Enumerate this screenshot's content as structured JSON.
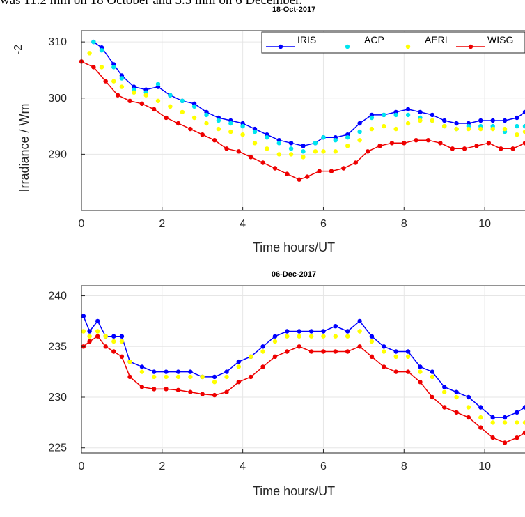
{
  "caption": "was 11.2 mm on 18 October and 5.5 mm on 6 December.",
  "chart_data": [
    {
      "type": "line",
      "title": "18-Oct-2017",
      "xlabel": "Time hours/UT",
      "ylabel": "Irradiance / Wm",
      "ylabel_superscript": "-2",
      "xlim": [
        0,
        11
      ],
      "ylim": [
        280,
        312
      ],
      "xticks": [
        0,
        2,
        4,
        6,
        8,
        10
      ],
      "yticks": [
        290,
        300,
        310
      ],
      "grid": true,
      "legend": "top-right",
      "series": [
        {
          "name": "IRIS",
          "color": "#0000ff",
          "marker": "dot-line",
          "x": [
            0.3,
            0.5,
            0.8,
            1.0,
            1.3,
            1.6,
            1.9,
            2.2,
            2.5,
            2.8,
            3.1,
            3.4,
            3.7,
            4.0,
            4.3,
            4.6,
            4.9,
            5.2,
            5.5,
            5.8,
            6.0,
            6.3,
            6.6,
            6.9,
            7.2,
            7.5,
            7.8,
            8.1,
            8.4,
            8.7,
            9.0,
            9.3,
            9.6,
            9.9,
            10.2,
            10.5,
            10.8,
            11.0
          ],
          "y": [
            310,
            309,
            306,
            304,
            302,
            301.5,
            302,
            300.5,
            299.5,
            299,
            297.5,
            296.5,
            296,
            295.5,
            294.5,
            293.5,
            292.5,
            292,
            291.5,
            292,
            293,
            293,
            293.5,
            295.5,
            297,
            297,
            297.5,
            298,
            297.5,
            297,
            296,
            295.5,
            295.5,
            296,
            296,
            296,
            296.5,
            297.5
          ]
        },
        {
          "name": "ACP",
          "color": "#00e5ee",
          "marker": "dot",
          "x": [
            0.3,
            0.5,
            0.8,
            1.0,
            1.3,
            1.6,
            1.9,
            2.2,
            2.5,
            2.8,
            3.1,
            3.4,
            3.7,
            4.0,
            4.3,
            4.6,
            4.9,
            5.2,
            5.5,
            5.8,
            6.0,
            6.3,
            6.6,
            6.9,
            7.2,
            7.5,
            7.8,
            8.1,
            8.4,
            8.7,
            9.0,
            9.3,
            9.6,
            9.9,
            10.2,
            10.5,
            10.8,
            11.0
          ],
          "y": [
            310,
            308.5,
            305.5,
            303.5,
            301.5,
            301,
            302.5,
            300.5,
            299.5,
            298.5,
            297,
            296,
            295.5,
            295,
            294,
            293,
            292,
            291,
            290.5,
            292,
            293,
            292.5,
            293,
            294,
            296.5,
            297,
            297,
            297,
            296.5,
            296,
            295,
            294.5,
            295,
            295,
            295,
            294,
            295,
            295
          ]
        },
        {
          "name": "AERI",
          "color": "#ffff00",
          "marker": "dot",
          "x": [
            0.2,
            0.5,
            0.8,
            1.0,
            1.3,
            1.6,
            1.9,
            2.2,
            2.5,
            2.8,
            3.1,
            3.4,
            3.7,
            4.0,
            4.3,
            4.6,
            4.9,
            5.2,
            5.5,
            5.8,
            6.0,
            6.3,
            6.6,
            6.9,
            7.2,
            7.5,
            7.8,
            8.1,
            8.4,
            8.7,
            9.0,
            9.3,
            9.6,
            9.9,
            10.2,
            10.5,
            10.8,
            11.0
          ],
          "y": [
            308,
            305.5,
            303,
            302,
            301,
            300.5,
            299.5,
            298.5,
            297.5,
            296.5,
            295.5,
            294.5,
            294,
            293.5,
            292,
            291,
            290,
            290,
            289.5,
            290.5,
            290.5,
            290.5,
            291.5,
            292.5,
            294.5,
            295,
            294.5,
            295.5,
            296,
            296,
            295,
            294.5,
            294.5,
            294.5,
            294.5,
            294.5,
            293.5,
            294
          ]
        },
        {
          "name": "WISG",
          "color": "#ee0000",
          "marker": "dot-line",
          "x": [
            0.0,
            0.3,
            0.6,
            0.9,
            1.2,
            1.5,
            1.8,
            2.1,
            2.4,
            2.7,
            3.0,
            3.3,
            3.6,
            3.9,
            4.2,
            4.5,
            4.8,
            5.1,
            5.4,
            5.6,
            5.9,
            6.2,
            6.5,
            6.8,
            7.1,
            7.4,
            7.7,
            8.0,
            8.3,
            8.6,
            8.9,
            9.2,
            9.5,
            9.8,
            10.1,
            10.4,
            10.7,
            11.0
          ],
          "y": [
            306.5,
            305.5,
            303,
            300.5,
            299.5,
            299,
            298,
            296.5,
            295.5,
            294.5,
            293.5,
            292.5,
            291,
            290.5,
            289.5,
            288.5,
            287.5,
            286.5,
            285.5,
            286,
            287,
            287,
            287.5,
            288.5,
            290.5,
            291.5,
            292,
            292,
            292.5,
            292.5,
            292,
            291,
            291,
            291.5,
            292,
            291,
            291,
            292
          ]
        }
      ]
    },
    {
      "type": "line",
      "title": "06-Dec-2017",
      "xlabel": "Time hours/UT",
      "ylabel": "",
      "xlim": [
        0,
        11
      ],
      "ylim": [
        224.5,
        241
      ],
      "xticks": [
        0,
        2,
        4,
        6,
        8,
        10
      ],
      "yticks": [
        225,
        230,
        235,
        240
      ],
      "grid": true,
      "series": [
        {
          "name": "IRIS",
          "color": "#0000ff",
          "marker": "dot-line",
          "x": [
            0.05,
            0.2,
            0.4,
            0.6,
            0.8,
            1.0,
            1.2,
            1.5,
            1.8,
            2.1,
            2.4,
            2.7,
            3.0,
            3.3,
            3.6,
            3.9,
            4.2,
            4.5,
            4.8,
            5.1,
            5.4,
            5.7,
            6.0,
            6.3,
            6.6,
            6.9,
            7.2,
            7.5,
            7.8,
            8.1,
            8.4,
            8.7,
            9.0,
            9.3,
            9.6,
            9.9,
            10.2,
            10.5,
            10.8,
            11.0
          ],
          "y": [
            238,
            236.5,
            237.5,
            236,
            236,
            236,
            233.5,
            233,
            232.5,
            232.5,
            232.5,
            232.5,
            232,
            232,
            232.5,
            233.5,
            234,
            235,
            236,
            236.5,
            236.5,
            236.5,
            236.5,
            237,
            236.5,
            237.5,
            236,
            235,
            234.5,
            234.5,
            233,
            232.5,
            231,
            230.5,
            230,
            229,
            228,
            228,
            228.5,
            229
          ]
        },
        {
          "name": "AERI",
          "color": "#ffff00",
          "marker": "dot",
          "x": [
            0.05,
            0.2,
            0.4,
            0.6,
            0.8,
            1.0,
            1.2,
            1.5,
            1.8,
            2.1,
            2.4,
            2.7,
            3.0,
            3.3,
            3.6,
            3.9,
            4.2,
            4.5,
            4.8,
            5.1,
            5.4,
            5.7,
            6.0,
            6.3,
            6.6,
            6.9,
            7.2,
            7.5,
            7.8,
            8.1,
            8.4,
            8.7,
            9.0,
            9.3,
            9.6,
            9.9,
            10.2,
            10.5,
            10.8,
            11.0
          ],
          "y": [
            236.5,
            236,
            236.5,
            236,
            235.5,
            235.5,
            233.5,
            232.5,
            232,
            232,
            232,
            232,
            232,
            231.5,
            232,
            233,
            234,
            234.5,
            235.5,
            236,
            236,
            236,
            236,
            236,
            236,
            236.5,
            235.5,
            234.5,
            234,
            234,
            232.5,
            232,
            230.5,
            230,
            229,
            228,
            227.5,
            227.5,
            227.5,
            227.5
          ]
        },
        {
          "name": "WISG",
          "color": "#ee0000",
          "marker": "dot-line",
          "x": [
            0.05,
            0.2,
            0.4,
            0.6,
            0.8,
            1.0,
            1.2,
            1.5,
            1.8,
            2.1,
            2.4,
            2.7,
            3.0,
            3.3,
            3.6,
            3.9,
            4.2,
            4.5,
            4.8,
            5.1,
            5.4,
            5.7,
            6.0,
            6.3,
            6.6,
            6.9,
            7.2,
            7.5,
            7.8,
            8.1,
            8.4,
            8.7,
            9.0,
            9.3,
            9.6,
            9.9,
            10.2,
            10.5,
            10.8,
            11.0
          ],
          "y": [
            235,
            235.5,
            236,
            235,
            234.5,
            234,
            232,
            231,
            230.8,
            230.8,
            230.7,
            230.5,
            230.3,
            230.2,
            230.5,
            231.5,
            232,
            233,
            234,
            234.5,
            235,
            234.5,
            234.5,
            234.5,
            234.5,
            235,
            234,
            233,
            232.5,
            232.5,
            231.5,
            230,
            229,
            228.5,
            228,
            227,
            226,
            225.5,
            226,
            226.5
          ]
        }
      ]
    }
  ]
}
